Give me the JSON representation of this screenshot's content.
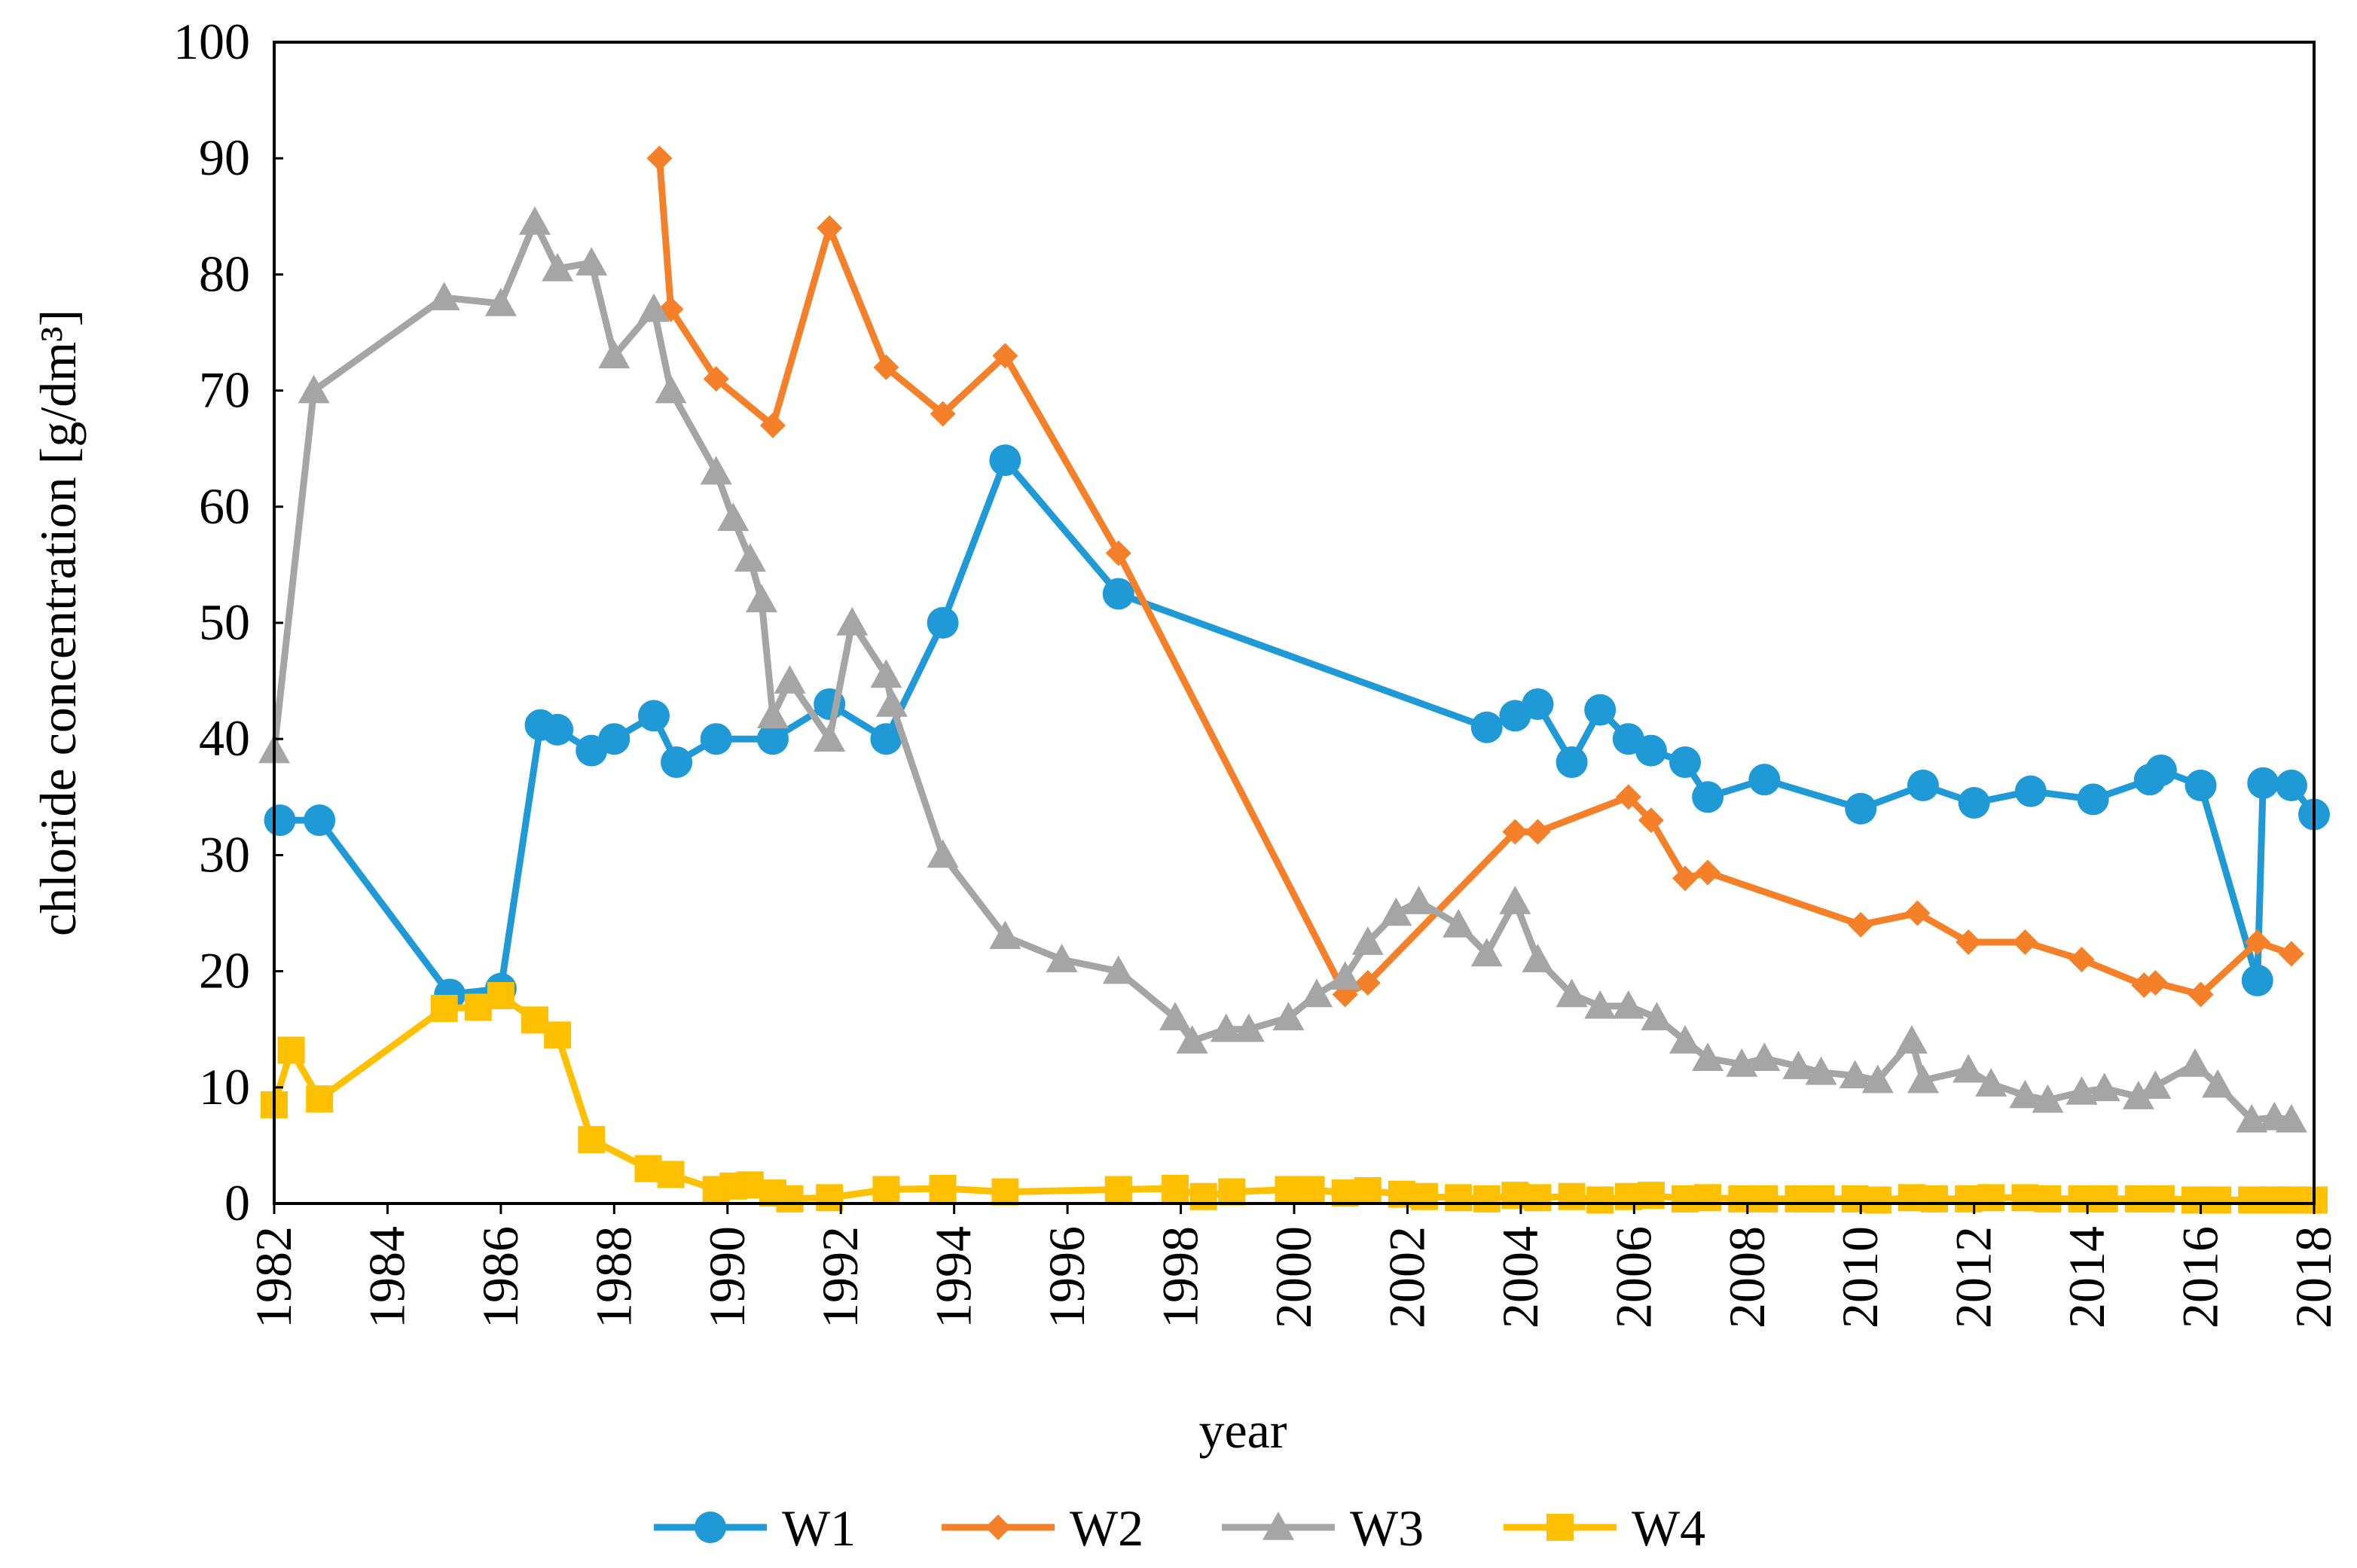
{
  "chart_data": {
    "type": "line",
    "title": "",
    "xlabel": "year",
    "ylabel": "chloride concentration [g/dm³]",
    "xlim": [
      1982,
      2018
    ],
    "ylim": [
      0,
      100
    ],
    "x_ticks": [
      "1982",
      "1984",
      "1986",
      "1988",
      "1990",
      "1992",
      "1994",
      "1996",
      "1998",
      "2000",
      "2002",
      "2004",
      "2006",
      "2008",
      "2010",
      "2012",
      "2014",
      "2016",
      "2018"
    ],
    "y_ticks": [
      "0",
      "10",
      "20",
      "30",
      "40",
      "50",
      "60",
      "70",
      "80",
      "90",
      "100"
    ],
    "grid": false,
    "legend_position": "bottom",
    "series": [
      {
        "name": "W1",
        "color": "#1F9AD6",
        "marker": "circle",
        "points": [
          [
            1982.1,
            33
          ],
          [
            1982.8,
            33
          ],
          [
            1985.1,
            18
          ],
          [
            1986.0,
            18.5
          ],
          [
            1986.7,
            41.2
          ],
          [
            1987.0,
            40.8
          ],
          [
            1987.6,
            39
          ],
          [
            1988.0,
            40
          ],
          [
            1988.7,
            42
          ],
          [
            1989.1,
            38
          ],
          [
            1989.8,
            40
          ],
          [
            1990.8,
            40
          ],
          [
            1991.8,
            43
          ],
          [
            1992.8,
            40
          ],
          [
            1993.8,
            50
          ],
          [
            1994.9,
            64
          ],
          [
            1996.9,
            52.5
          ],
          [
            2003.4,
            41
          ],
          [
            2003.9,
            42
          ],
          [
            2004.3,
            43
          ],
          [
            2004.9,
            38
          ],
          [
            2005.4,
            42.5
          ],
          [
            2005.9,
            40
          ],
          [
            2006.3,
            39
          ],
          [
            2006.9,
            38
          ],
          [
            2007.3,
            35
          ],
          [
            2008.3,
            36.5
          ],
          [
            2010.0,
            34
          ],
          [
            2011.1,
            36
          ],
          [
            2012.0,
            34.5
          ],
          [
            2013.0,
            35.5
          ],
          [
            2014.1,
            34.8
          ],
          [
            2015.1,
            36.5
          ],
          [
            2015.3,
            37.3
          ],
          [
            2016.0,
            36
          ],
          [
            2017.0,
            19.2
          ],
          [
            2017.1,
            36.2
          ],
          [
            2017.6,
            36
          ],
          [
            2018.0,
            33.5
          ]
        ]
      },
      {
        "name": "W2",
        "color": "#F5802A",
        "marker": "diamond",
        "points": [
          [
            1988.8,
            90
          ],
          [
            1989.0,
            77
          ],
          [
            1989.8,
            71
          ],
          [
            1990.8,
            67
          ],
          [
            1991.8,
            84
          ],
          [
            1992.8,
            72
          ],
          [
            1993.8,
            68
          ],
          [
            1994.9,
            73
          ],
          [
            1996.9,
            56
          ],
          [
            2000.9,
            18
          ],
          [
            2001.3,
            19
          ],
          [
            2003.9,
            32
          ],
          [
            2004.3,
            32
          ],
          [
            2005.9,
            35
          ],
          [
            2006.3,
            33
          ],
          [
            2006.9,
            28
          ],
          [
            2007.3,
            28.5
          ],
          [
            2010.0,
            24
          ],
          [
            2011.0,
            25
          ],
          [
            2011.9,
            22.5
          ],
          [
            2012.9,
            22.5
          ],
          [
            2013.9,
            21
          ],
          [
            2015.0,
            18.8
          ],
          [
            2015.2,
            19
          ],
          [
            2016.0,
            18
          ],
          [
            2017.0,
            22.5
          ],
          [
            2017.6,
            21.5
          ]
        ]
      },
      {
        "name": "W3",
        "color": "#A5A5A5",
        "marker": "triangle",
        "points": [
          [
            1982.0,
            39
          ],
          [
            1982.7,
            70
          ],
          [
            1985.0,
            78
          ],
          [
            1986.0,
            77.5
          ],
          [
            1986.6,
            84.5
          ],
          [
            1987.0,
            80.5
          ],
          [
            1987.6,
            81
          ],
          [
            1988.0,
            73
          ],
          [
            1988.7,
            77
          ],
          [
            1989.0,
            70
          ],
          [
            1989.8,
            63
          ],
          [
            1990.1,
            59
          ],
          [
            1990.4,
            55.5
          ],
          [
            1990.6,
            52
          ],
          [
            1990.8,
            42
          ],
          [
            1991.1,
            45
          ],
          [
            1991.8,
            40
          ],
          [
            1992.2,
            50
          ],
          [
            1992.8,
            45.5
          ],
          [
            1992.9,
            43
          ],
          [
            1993.8,
            30
          ],
          [
            1994.9,
            23
          ],
          [
            1995.9,
            21
          ],
          [
            1996.9,
            20
          ],
          [
            1997.9,
            16
          ],
          [
            1998.2,
            14
          ],
          [
            1998.8,
            15
          ],
          [
            1999.2,
            15
          ],
          [
            1999.9,
            16
          ],
          [
            2000.4,
            18
          ],
          [
            2000.9,
            19.5
          ],
          [
            2001.3,
            22.5
          ],
          [
            2001.8,
            25
          ],
          [
            2002.2,
            26
          ],
          [
            2002.9,
            24
          ],
          [
            2003.4,
            21.5
          ],
          [
            2003.9,
            26
          ],
          [
            2004.3,
            21
          ],
          [
            2004.9,
            18
          ],
          [
            2005.4,
            17
          ],
          [
            2005.9,
            17
          ],
          [
            2006.4,
            16
          ],
          [
            2006.9,
            14
          ],
          [
            2007.3,
            12.5
          ],
          [
            2007.9,
            12
          ],
          [
            2008.3,
            12.5
          ],
          [
            2008.9,
            11.8
          ],
          [
            2009.3,
            11.3
          ],
          [
            2009.9,
            11
          ],
          [
            2010.3,
            10.6
          ],
          [
            2010.9,
            14
          ],
          [
            2011.1,
            10.6
          ],
          [
            2011.9,
            11.5
          ],
          [
            2012.3,
            10.3
          ],
          [
            2012.9,
            9.3
          ],
          [
            2013.3,
            8.9
          ],
          [
            2013.9,
            9.6
          ],
          [
            2014.3,
            9.9
          ],
          [
            2014.9,
            9.2
          ],
          [
            2015.2,
            10.1
          ],
          [
            2015.9,
            12
          ],
          [
            2016.3,
            10.2
          ],
          [
            2016.9,
            7.2
          ],
          [
            2017.3,
            7.4
          ],
          [
            2017.6,
            7.2
          ]
        ]
      },
      {
        "name": "W4",
        "color": "#FFC000",
        "marker": "square",
        "points": [
          [
            1982.0,
            8.5
          ],
          [
            1982.3,
            13.2
          ],
          [
            1982.8,
            9
          ],
          [
            1985.0,
            16.8
          ],
          [
            1985.6,
            16.9
          ],
          [
            1986.0,
            17.9
          ],
          [
            1986.6,
            15.8
          ],
          [
            1987.0,
            14.5
          ],
          [
            1987.6,
            5.5
          ],
          [
            1988.6,
            3
          ],
          [
            1989.0,
            2.5
          ],
          [
            1989.8,
            1.2
          ],
          [
            1990.1,
            1.5
          ],
          [
            1990.4,
            1.6
          ],
          [
            1990.8,
            0.9
          ],
          [
            1991.1,
            0.4
          ],
          [
            1991.8,
            0.5
          ],
          [
            1992.8,
            1.2
          ],
          [
            1993.8,
            1.3
          ],
          [
            1994.9,
            1
          ],
          [
            1996.9,
            1.2
          ],
          [
            1997.9,
            1.3
          ],
          [
            1998.4,
            0.6
          ],
          [
            1998.9,
            1
          ],
          [
            1999.9,
            1.2
          ],
          [
            2000.3,
            1.2
          ],
          [
            2000.9,
            0.9
          ],
          [
            2001.3,
            1.1
          ],
          [
            2001.9,
            0.8
          ],
          [
            2002.3,
            0.6
          ],
          [
            2002.9,
            0.5
          ],
          [
            2003.4,
            0.4
          ],
          [
            2003.9,
            0.7
          ],
          [
            2004.3,
            0.5
          ],
          [
            2004.9,
            0.6
          ],
          [
            2005.4,
            0.3
          ],
          [
            2005.9,
            0.6
          ],
          [
            2006.3,
            0.7
          ],
          [
            2006.9,
            0.4
          ],
          [
            2007.3,
            0.5
          ],
          [
            2007.9,
            0.4
          ],
          [
            2008.3,
            0.4
          ],
          [
            2008.9,
            0.4
          ],
          [
            2009.3,
            0.4
          ],
          [
            2009.9,
            0.4
          ],
          [
            2010.3,
            0.3
          ],
          [
            2010.9,
            0.5
          ],
          [
            2011.3,
            0.4
          ],
          [
            2011.9,
            0.4
          ],
          [
            2012.3,
            0.5
          ],
          [
            2012.9,
            0.5
          ],
          [
            2013.3,
            0.4
          ],
          [
            2013.9,
            0.4
          ],
          [
            2014.3,
            0.4
          ],
          [
            2014.9,
            0.4
          ],
          [
            2015.3,
            0.4
          ],
          [
            2015.9,
            0.3
          ],
          [
            2016.3,
            0.3
          ],
          [
            2016.9,
            0.3
          ],
          [
            2017.3,
            0.3
          ],
          [
            2017.6,
            0.3
          ],
          [
            2018.0,
            0.3
          ]
        ]
      }
    ]
  }
}
